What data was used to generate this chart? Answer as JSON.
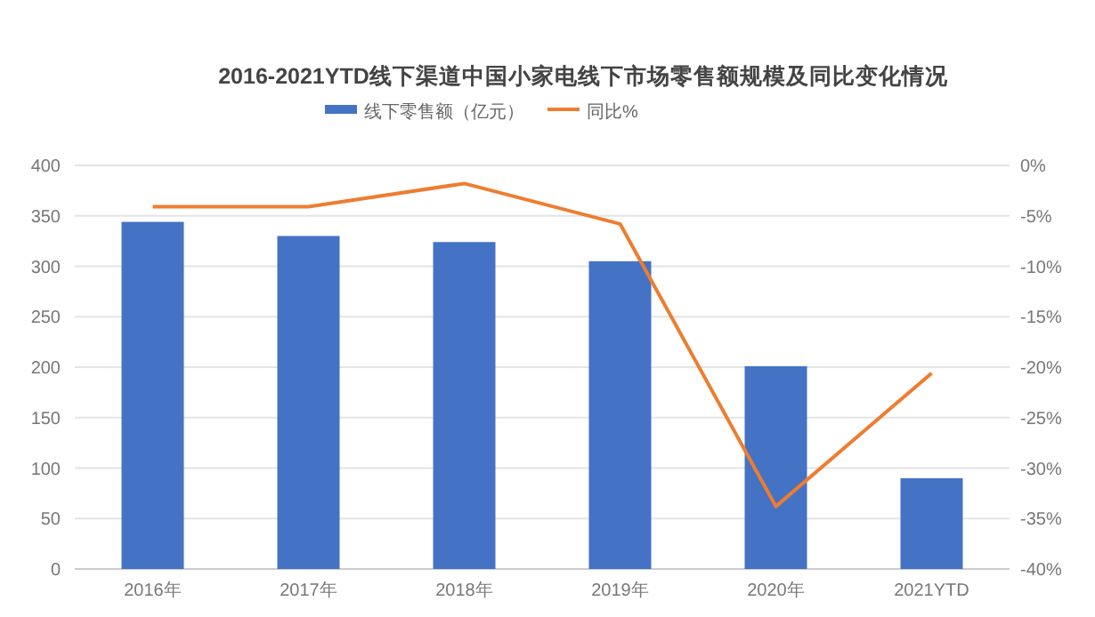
{
  "chart_data": {
    "type": "bar",
    "title": "2016-2021YTD线下渠道中国小家电线下市场零售额规模及同比变化情况",
    "categories": [
      "2016年",
      "2017年",
      "2018年",
      "2019年",
      "2020年",
      "2021YTD"
    ],
    "series": [
      {
        "name": "线下零售额（亿元）",
        "color": "#4472c4",
        "values": [
          344,
          330,
          324,
          305,
          201,
          90
        ]
      },
      {
        "name": "同比%",
        "color": "#ed7d31",
        "type": "line",
        "axis": "y2",
        "values": [
          -4.1,
          -4.1,
          -1.8,
          -5.8,
          -33.8,
          -20.6
        ]
      }
    ],
    "ylim": [
      0,
      400
    ],
    "yticks": [
      0,
      50,
      100,
      150,
      200,
      250,
      300,
      350,
      400
    ],
    "y2lim": [
      -40,
      0
    ],
    "y2ticks": [
      {
        "value": 0,
        "label": "0%"
      },
      {
        "value": -5,
        "label": "-5%"
      },
      {
        "value": -10,
        "label": "-10%"
      },
      {
        "value": -15,
        "label": "-15%"
      },
      {
        "value": -20,
        "label": "-20%"
      },
      {
        "value": -25,
        "label": "-25%"
      },
      {
        "value": -30,
        "label": "-30%"
      },
      {
        "value": -35,
        "label": "-35%"
      },
      {
        "value": -40,
        "label": "-40%"
      }
    ],
    "grid": "y",
    "legend": "top",
    "marker": "none",
    "line_style": "solid"
  }
}
